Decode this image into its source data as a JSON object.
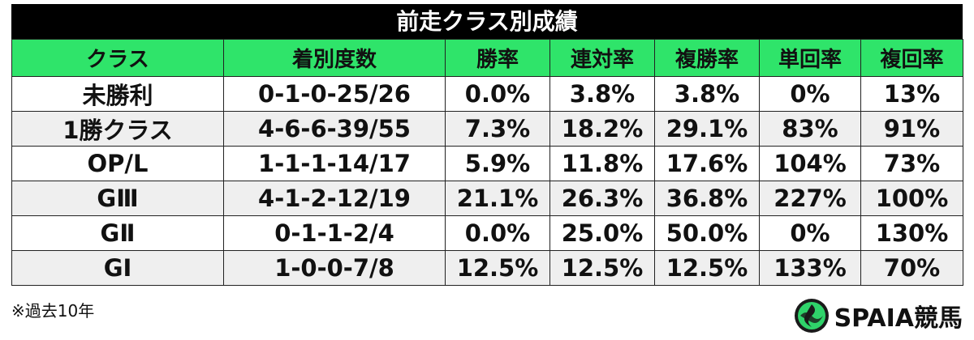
{
  "header": {
    "title": "前走クラス別成績"
  },
  "table": {
    "columns": [
      "クラス",
      "着別度数",
      "勝率",
      "連対率",
      "複勝率",
      "単回率",
      "複回率"
    ],
    "rows": [
      [
        "未勝利",
        "0-1-0-25/26",
        "0.0%",
        "3.8%",
        "3.8%",
        "0%",
        "13%"
      ],
      [
        "1勝クラス",
        "4-6-6-39/55",
        "7.3%",
        "18.2%",
        "29.1%",
        "83%",
        "91%"
      ],
      [
        "OP/L",
        "1-1-1-14/17",
        "5.9%",
        "11.8%",
        "17.6%",
        "104%",
        "73%"
      ],
      [
        "GⅢ",
        "4-1-2-12/19",
        "21.1%",
        "26.3%",
        "36.8%",
        "227%",
        "100%"
      ],
      [
        "GⅡ",
        "0-1-1-2/4",
        "0.0%",
        "25.0%",
        "50.0%",
        "0%",
        "130%"
      ],
      [
        "GⅠ",
        "1-0-0-7/8",
        "12.5%",
        "12.5%",
        "12.5%",
        "133%",
        "70%"
      ]
    ]
  },
  "footnote": "※過去10年",
  "logo": {
    "text": "SPAIA競馬"
  }
}
